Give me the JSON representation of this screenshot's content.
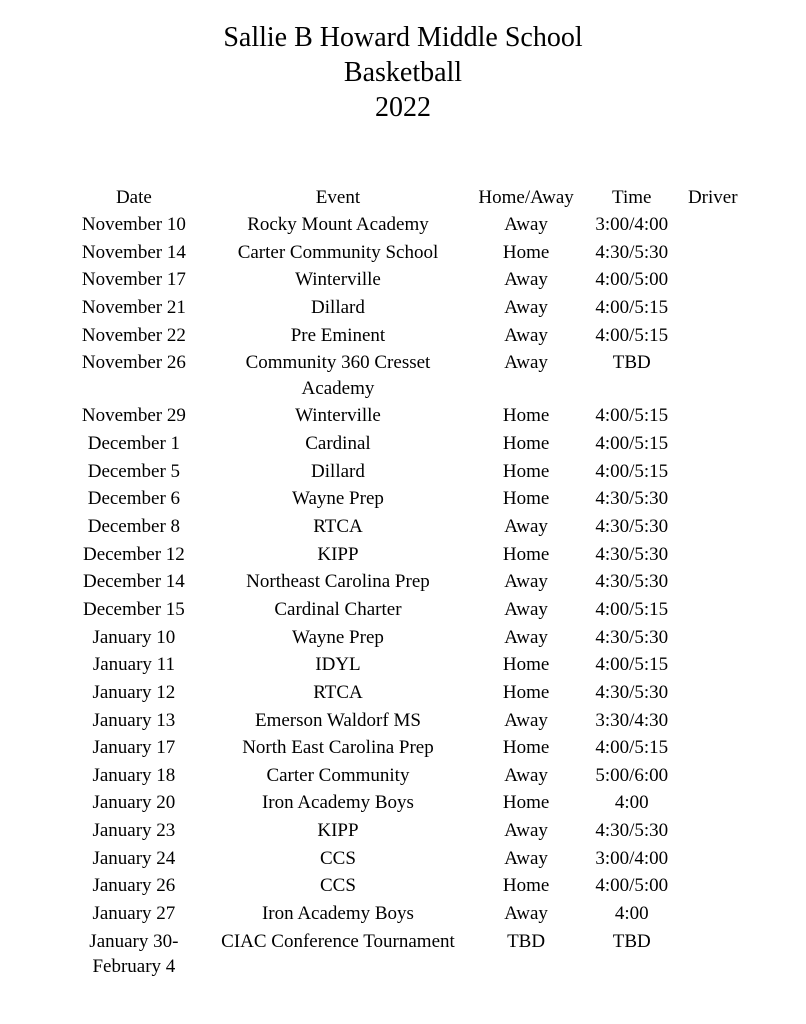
{
  "title": {
    "line1": "Sallie B Howard Middle School",
    "line2": "Basketball",
    "line3": "2022"
  },
  "columns": {
    "date": "Date",
    "event": "Event",
    "home_away": "Home/Away",
    "time": "Time",
    "driver": "Driver"
  },
  "styling": {
    "background_color": "#ffffff",
    "text_color": "#000000",
    "title_fontsize": 28,
    "body_fontsize": 19,
    "font_family": "Times New Roman",
    "column_widths": {
      "date": 150,
      "event": 280,
      "home_away": 110,
      "time": 90,
      "driver": 60
    }
  },
  "schedule": [
    {
      "date": "November 10",
      "event": "Rocky Mount Academy",
      "home_away": "Away",
      "time": "3:00/4:00",
      "driver": ""
    },
    {
      "date": "November 14",
      "event": "Carter Community School",
      "home_away": "Home",
      "time": "4:30/5:30",
      "driver": ""
    },
    {
      "date": "November 17",
      "event": "Winterville",
      "home_away": "Away",
      "time": "4:00/5:00",
      "driver": ""
    },
    {
      "date": "November 21",
      "event": "Dillard",
      "home_away": "Away",
      "time": "4:00/5:15",
      "driver": ""
    },
    {
      "date": "November 22",
      "event": "Pre Eminent",
      "home_away": "Away",
      "time": "4:00/5:15",
      "driver": ""
    },
    {
      "date": "November 26",
      "event": "Community 360 Cresset Academy",
      "home_away": "Away",
      "time": "TBD",
      "driver": ""
    },
    {
      "date": "November 29",
      "event": "Winterville",
      "home_away": "Home",
      "time": "4:00/5:15",
      "driver": ""
    },
    {
      "date": "December 1",
      "event": "Cardinal",
      "home_away": "Home",
      "time": "4:00/5:15",
      "driver": ""
    },
    {
      "date": "December 5",
      "event": "Dillard",
      "home_away": "Home",
      "time": "4:00/5:15",
      "driver": ""
    },
    {
      "date": "December 6",
      "event": "Wayne Prep",
      "home_away": "Home",
      "time": "4:30/5:30",
      "driver": ""
    },
    {
      "date": "December 8",
      "event": "RTCA",
      "home_away": "Away",
      "time": "4:30/5:30",
      "driver": ""
    },
    {
      "date": "December 12",
      "event": "KIPP",
      "home_away": "Home",
      "time": "4:30/5:30",
      "driver": ""
    },
    {
      "date": "December 14",
      "event": "Northeast Carolina Prep",
      "home_away": "Away",
      "time": "4:30/5:30",
      "driver": ""
    },
    {
      "date": "December 15",
      "event": "Cardinal Charter",
      "home_away": "Away",
      "time": "4:00/5:15",
      "driver": ""
    },
    {
      "date": "January 10",
      "event": "Wayne Prep",
      "home_away": "Away",
      "time": "4:30/5:30",
      "driver": ""
    },
    {
      "date": "January 11",
      "event": "IDYL",
      "home_away": "Home",
      "time": "4:00/5:15",
      "driver": ""
    },
    {
      "date": "January 12",
      "event": "RTCA",
      "home_away": "Home",
      "time": "4:30/5:30",
      "driver": ""
    },
    {
      "date": "January 13",
      "event": "Emerson Waldorf MS",
      "home_away": "Away",
      "time": "3:30/4:30",
      "driver": ""
    },
    {
      "date": "January 17",
      "event": "North East Carolina Prep",
      "home_away": "Home",
      "time": "4:00/5:15",
      "driver": ""
    },
    {
      "date": "January 18",
      "event": "Carter Community",
      "home_away": "Away",
      "time": "5:00/6:00",
      "driver": ""
    },
    {
      "date": "January 20",
      "event": "Iron Academy Boys",
      "home_away": "Home",
      "time": "4:00",
      "driver": ""
    },
    {
      "date": "January 23",
      "event": "KIPP",
      "home_away": "Away",
      "time": "4:30/5:30",
      "driver": ""
    },
    {
      "date": "January 24",
      "event": "CCS",
      "home_away": "Away",
      "time": "3:00/4:00",
      "driver": ""
    },
    {
      "date": "January 26",
      "event": "CCS",
      "home_away": "Home",
      "time": "4:00/5:00",
      "driver": ""
    },
    {
      "date": "January 27",
      "event": "Iron Academy Boys",
      "home_away": "Away",
      "time": "4:00",
      "driver": ""
    },
    {
      "date": "January 30-\nFebruary 4",
      "event": "CIAC Conference Tournament",
      "home_away": "TBD",
      "time": "TBD",
      "driver": ""
    }
  ]
}
